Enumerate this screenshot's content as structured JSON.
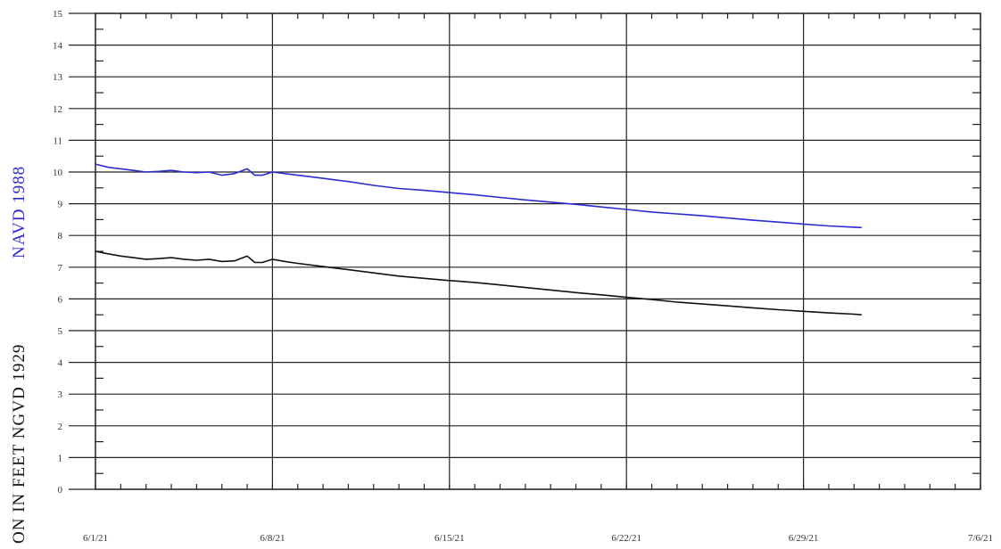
{
  "chart_data": {
    "type": "line",
    "title": "",
    "ylabel_black": "ON  IN  FEET  NGVD 1929",
    "ylabel_blue": "NAVD 1988",
    "x_tick_labels": [
      "6/1/21",
      "6/8/21",
      "6/15/21",
      "6/22/21",
      "6/29/21",
      "7/6/21"
    ],
    "x_range_days": [
      0,
      35
    ],
    "y_tick_labels": [
      "0",
      "1",
      "2",
      "3",
      "4",
      "5",
      "6",
      "7",
      "8",
      "9",
      "10",
      "11",
      "12",
      "13",
      "14",
      "15"
    ],
    "ylim": [
      0,
      15
    ],
    "grid": true,
    "series": [
      {
        "color": "#2b2bd0",
        "x": [
          0,
          0.5,
          1,
          1.5,
          2,
          2.5,
          3,
          3.5,
          4,
          4.5,
          5,
          5.5,
          6,
          6.3,
          6.6,
          7,
          7.5,
          8,
          9,
          10,
          11,
          12,
          13,
          14,
          15,
          16,
          17,
          18,
          19,
          20,
          21,
          22,
          23,
          24,
          25,
          26,
          27,
          28,
          29,
          30,
          30.3
        ],
        "y": [
          10.25,
          10.15,
          10.1,
          10.05,
          10.0,
          10.02,
          10.05,
          10.0,
          9.98,
          10.0,
          9.9,
          9.95,
          10.1,
          9.9,
          9.9,
          10.0,
          9.95,
          9.9,
          9.8,
          9.7,
          9.58,
          9.48,
          9.42,
          9.35,
          9.28,
          9.2,
          9.12,
          9.05,
          8.98,
          8.9,
          8.82,
          8.74,
          8.68,
          8.62,
          8.55,
          8.48,
          8.42,
          8.36,
          8.3,
          8.26,
          8.25
        ]
      },
      {
        "color": "#111111",
        "x": [
          0,
          0.5,
          1,
          1.5,
          2,
          2.5,
          3,
          3.5,
          4,
          4.5,
          5,
          5.5,
          6,
          6.3,
          6.6,
          7,
          7.5,
          8,
          9,
          10,
          11,
          12,
          13,
          14,
          15,
          16,
          17,
          18,
          19,
          20,
          21,
          22,
          23,
          24,
          25,
          26,
          27,
          28,
          29,
          30,
          30.3
        ],
        "y": [
          7.5,
          7.42,
          7.35,
          7.3,
          7.25,
          7.27,
          7.3,
          7.25,
          7.22,
          7.25,
          7.18,
          7.2,
          7.35,
          7.15,
          7.15,
          7.25,
          7.18,
          7.12,
          7.02,
          6.92,
          6.82,
          6.72,
          6.65,
          6.58,
          6.52,
          6.44,
          6.36,
          6.28,
          6.2,
          6.13,
          6.05,
          5.98,
          5.9,
          5.84,
          5.78,
          5.72,
          5.66,
          5.61,
          5.56,
          5.52,
          5.5
        ]
      }
    ]
  }
}
